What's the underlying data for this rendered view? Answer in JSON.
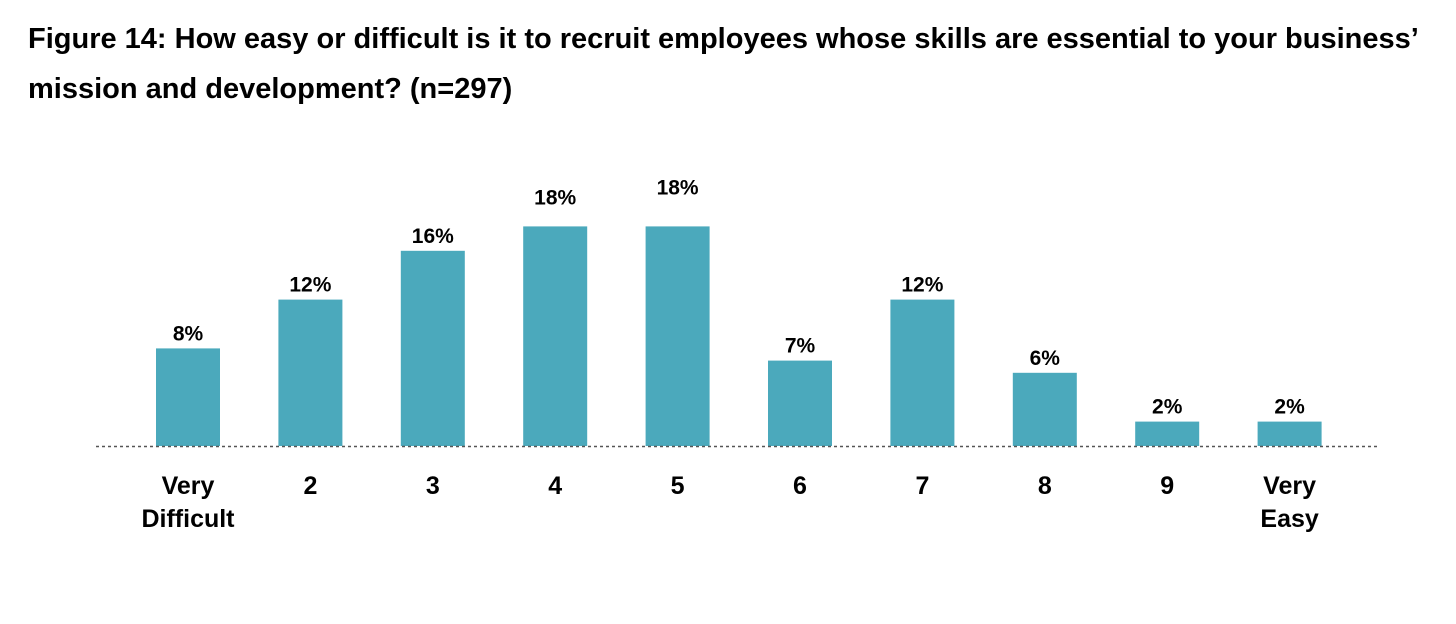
{
  "title": "Figure 14: How easy or difficult is it to recruit employees whose skills are essential to your business’ mission and development? (n=297)",
  "colors": {
    "bar": "#4ba9bc",
    "baseline": "#555555",
    "text": "#000000"
  },
  "chart_data": {
    "type": "bar",
    "title": "Figure 14: How easy or difficult is it to recruit employees whose skills are essential to your business’ mission and development? (n=297)",
    "categories": [
      [
        "Very",
        "Difficult"
      ],
      [
        "2"
      ],
      [
        "3"
      ],
      [
        "4"
      ],
      [
        "5"
      ],
      [
        "6"
      ],
      [
        "7"
      ],
      [
        "8"
      ],
      [
        "9"
      ],
      [
        "Very",
        "Easy"
      ]
    ],
    "values": [
      8,
      12,
      16,
      18,
      18,
      7,
      12,
      6,
      2,
      2
    ],
    "data_labels": [
      "8%",
      "12%",
      "16%",
      "18%",
      "18%",
      "7%",
      "12%",
      "6%",
      "2%",
      "2%"
    ],
    "unit": "%",
    "xlabel": "",
    "ylabel": "",
    "grid": false,
    "legend": "none"
  }
}
